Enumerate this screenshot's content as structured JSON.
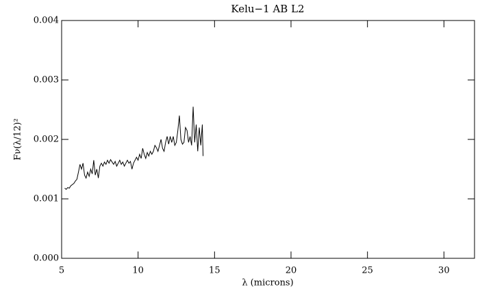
{
  "chart_data": {
    "type": "line",
    "title": "Kelu−1 AB L2",
    "xlabel": "λ (microns)",
    "ylabel": "Fν(λ/12)²",
    "x": [
      5.2,
      5.3,
      5.4,
      5.5,
      5.6,
      5.7,
      5.8,
      5.9,
      6.0,
      6.1,
      6.2,
      6.3,
      6.4,
      6.5,
      6.6,
      6.7,
      6.8,
      6.9,
      7.0,
      7.1,
      7.2,
      7.3,
      7.4,
      7.5,
      7.6,
      7.7,
      7.8,
      7.9,
      8.0,
      8.1,
      8.2,
      8.3,
      8.4,
      8.5,
      8.6,
      8.7,
      8.8,
      8.9,
      9.0,
      9.1,
      9.2,
      9.3,
      9.4,
      9.5,
      9.6,
      9.7,
      9.8,
      9.9,
      10.0,
      10.1,
      10.2,
      10.3,
      10.4,
      10.5,
      10.6,
      10.7,
      10.8,
      10.9,
      11.0,
      11.1,
      11.2,
      11.3,
      11.4,
      11.5,
      11.6,
      11.7,
      11.8,
      11.9,
      12.0,
      12.1,
      12.2,
      12.3,
      12.4,
      12.5,
      12.6,
      12.7,
      12.8,
      12.9,
      13.0,
      13.1,
      13.2,
      13.3,
      13.4,
      13.5,
      13.6,
      13.7,
      13.8,
      13.9,
      14.0,
      14.1,
      14.2,
      14.25
    ],
    "values": [
      0.00118,
      0.00116,
      0.00119,
      0.00118,
      0.00122,
      0.00124,
      0.00126,
      0.0013,
      0.00133,
      0.00145,
      0.00158,
      0.0015,
      0.0016,
      0.0014,
      0.00135,
      0.00145,
      0.00138,
      0.0015,
      0.00142,
      0.00165,
      0.0014,
      0.0015,
      0.00135,
      0.00155,
      0.0016,
      0.00155,
      0.00162,
      0.00158,
      0.00165,
      0.0016,
      0.00166,
      0.00162,
      0.00158,
      0.00163,
      0.00155,
      0.0016,
      0.00165,
      0.00158,
      0.00162,
      0.00155,
      0.0016,
      0.00165,
      0.0016,
      0.00163,
      0.0015,
      0.0016,
      0.00165,
      0.0017,
      0.00165,
      0.00175,
      0.00168,
      0.00185,
      0.00175,
      0.00168,
      0.00178,
      0.00172,
      0.0018,
      0.00175,
      0.0018,
      0.0019,
      0.00186,
      0.0018,
      0.0019,
      0.002,
      0.00185,
      0.0018,
      0.00195,
      0.00205,
      0.00192,
      0.00205,
      0.00195,
      0.00205,
      0.0019,
      0.00195,
      0.00215,
      0.0024,
      0.002,
      0.00192,
      0.00195,
      0.0022,
      0.00215,
      0.00195,
      0.00205,
      0.0019,
      0.00255,
      0.00195,
      0.00225,
      0.0018,
      0.0022,
      0.0019,
      0.00225,
      0.00172
    ],
    "color": "#000000",
    "xlim": [
      5,
      32
    ],
    "xticks": [
      5,
      10,
      15,
      20,
      25,
      30
    ],
    "ylim": [
      0,
      0.004
    ],
    "yticks": [
      {
        "value": 0,
        "label": "0.000"
      },
      {
        "value": 0.001,
        "label": "0.001"
      },
      {
        "value": 0.002,
        "label": "0.002"
      },
      {
        "value": 0.003,
        "label": "0.003"
      },
      {
        "value": 0.004,
        "label": "0.004"
      }
    ]
  }
}
